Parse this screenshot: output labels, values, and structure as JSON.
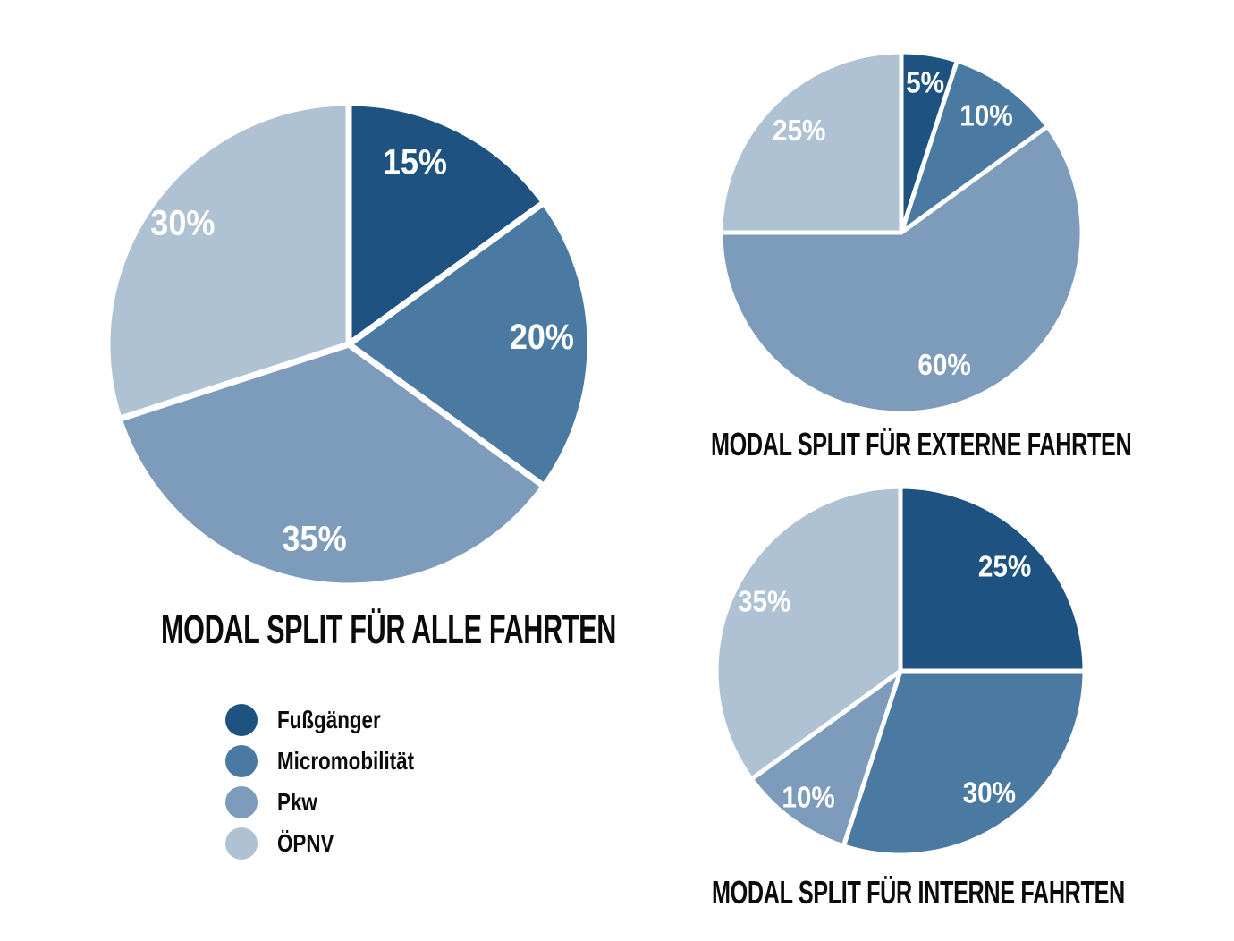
{
  "colors": {
    "fussgaenger": "#1E5381",
    "micromobilitaet": "#4A79A1",
    "pkw": "#7D9CBC",
    "oepnv": "#AFC2D3",
    "separator": "#FFFFFF",
    "label_text": "#FFFFFF",
    "title_text": "#0B0B0B",
    "background": "#FFFFFF"
  },
  "legend": {
    "items": [
      {
        "label": "Fußgänger",
        "color_key": "fussgaenger"
      },
      {
        "label": "Micromobilität",
        "color_key": "micromobilitaet"
      },
      {
        "label": "Pkw",
        "color_key": "pkw"
      },
      {
        "label": "ÖPNV",
        "color_key": "oepnv"
      }
    ]
  },
  "chart_data": [
    {
      "type": "pie",
      "title": "MODAL SPLIT FÜR ALLE FAHRTEN",
      "categories": [
        "Fußgänger",
        "Micromobilität",
        "Pkw",
        "ÖPNV"
      ],
      "values": [
        15,
        20,
        35,
        30
      ],
      "unit": "%",
      "start_angle_deg": 0,
      "direction": "clockwise",
      "labels_on_slices": true,
      "legend_position": "below-left"
    },
    {
      "type": "pie",
      "title": "MODAL SPLIT FÜR EXTERNE FAHRTEN",
      "categories": [
        "Fußgänger",
        "Micromobilität",
        "Pkw",
        "ÖPNV"
      ],
      "values": [
        5,
        10,
        60,
        25
      ],
      "unit": "%",
      "start_angle_deg": 0,
      "direction": "clockwise",
      "labels_on_slices": true,
      "legend_position": "shared"
    },
    {
      "type": "pie",
      "title": "MODAL SPLIT FÜR INTERNE FAHRTEN",
      "categories": [
        "Fußgänger",
        "Micromobilität",
        "Pkw",
        "ÖPNV"
      ],
      "values": [
        25,
        30,
        10,
        35
      ],
      "unit": "%",
      "start_angle_deg": 0,
      "direction": "clockwise",
      "labels_on_slices": true,
      "legend_position": "shared"
    }
  ]
}
